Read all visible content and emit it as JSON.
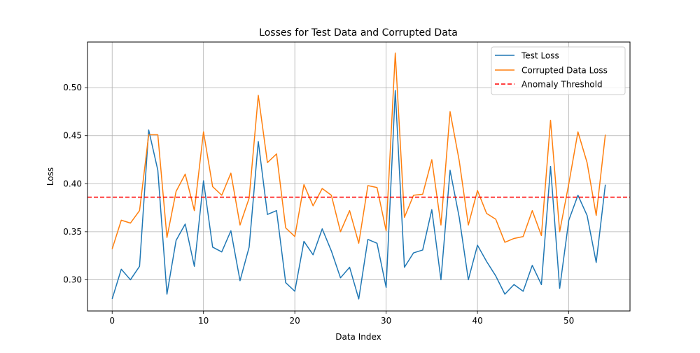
{
  "chart_data": {
    "type": "line",
    "title": "Losses for Test Data and Corrupted Data",
    "xlabel": "Data Index",
    "ylabel": "Loss",
    "xlim": [
      -2.7,
      56.7
    ],
    "ylim": [
      0.2675,
      0.5475
    ],
    "xticks": [
      0,
      10,
      20,
      30,
      40,
      50
    ],
    "yticks": [
      0.3,
      0.35,
      0.4,
      0.45,
      0.5
    ],
    "xtick_labels": [
      "0",
      "10",
      "20",
      "30",
      "40",
      "50"
    ],
    "ytick_labels": [
      "0.30",
      "0.35",
      "0.40",
      "0.45",
      "0.50"
    ],
    "grid": true,
    "legend_position": "top-right",
    "series": [
      {
        "name": "Test Loss",
        "color": "#1f77b4",
        "style": "solid",
        "values": [
          0.28,
          0.311,
          0.3,
          0.314,
          0.456,
          0.414,
          0.285,
          0.341,
          0.358,
          0.314,
          0.403,
          0.334,
          0.329,
          0.351,
          0.299,
          0.334,
          0.444,
          0.368,
          0.372,
          0.297,
          0.288,
          0.34,
          0.326,
          0.353,
          0.33,
          0.302,
          0.313,
          0.28,
          0.342,
          0.338,
          0.292,
          0.497,
          0.313,
          0.328,
          0.331,
          0.373,
          0.3,
          0.414,
          0.365,
          0.3,
          0.336,
          0.319,
          0.304,
          0.285,
          0.295,
          0.288,
          0.315,
          0.295,
          0.418,
          0.291,
          0.362,
          0.388,
          0.367,
          0.318,
          0.399
        ]
      },
      {
        "name": "Corrupted Data Loss",
        "color": "#ff7f0e",
        "style": "solid",
        "values": [
          0.332,
          0.362,
          0.359,
          0.372,
          0.451,
          0.451,
          0.344,
          0.392,
          0.41,
          0.372,
          0.454,
          0.397,
          0.388,
          0.411,
          0.357,
          0.385,
          0.492,
          0.422,
          0.431,
          0.354,
          0.345,
          0.399,
          0.377,
          0.395,
          0.388,
          0.35,
          0.372,
          0.338,
          0.398,
          0.396,
          0.351,
          0.536,
          0.365,
          0.388,
          0.389,
          0.425,
          0.357,
          0.475,
          0.424,
          0.357,
          0.393,
          0.369,
          0.363,
          0.339,
          0.343,
          0.345,
          0.372,
          0.346,
          0.466,
          0.35,
          0.4,
          0.454,
          0.422,
          0.367,
          0.451
        ]
      },
      {
        "name": "Anomaly Threshold",
        "color": "#ff0000",
        "style": "dashed",
        "threshold": 0.386
      }
    ]
  }
}
